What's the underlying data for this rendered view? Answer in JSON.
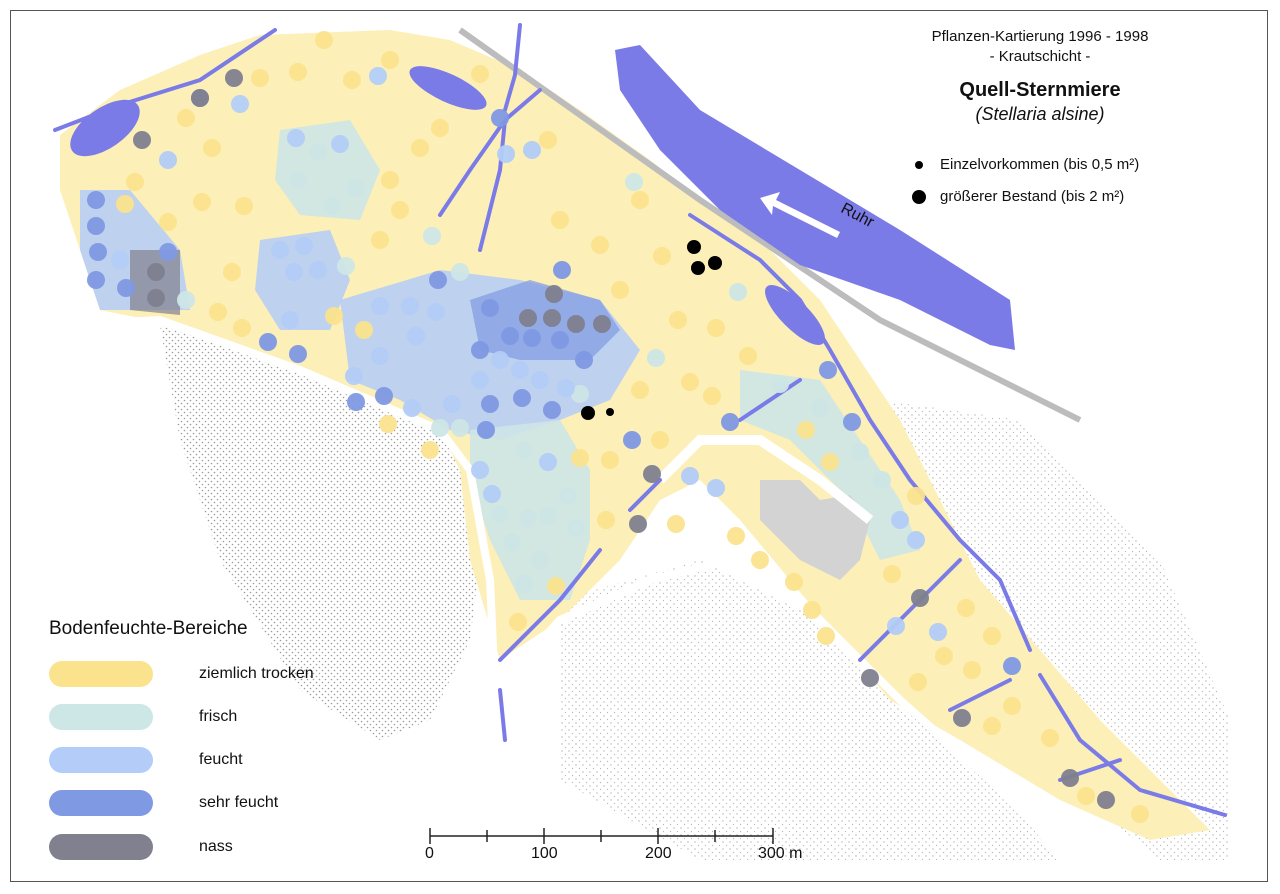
{
  "title": {
    "line1": "Pflanzen-Kartierung 1996 - 1998",
    "line2": "- Krautschicht -",
    "species": "Quell-Sternmiere",
    "scientific": "(Stellaria alsine)"
  },
  "occurrence_legend": [
    {
      "label": "Einzelvorkommen (bis 0,5 m²)",
      "size": "small"
    },
    {
      "label": "größerer Bestand (bis 2 m²)",
      "size": "large"
    }
  ],
  "river": {
    "name": "Ruhr"
  },
  "moisture_legend": {
    "title": "Bodenfeuchte-Bereiche",
    "classes": [
      {
        "label": "ziemlich trocken",
        "color": "#fbe38e"
      },
      {
        "label": "frisch",
        "color": "#cde6e6"
      },
      {
        "label": "feucht",
        "color": "#b3cdf8"
      },
      {
        "label": "sehr feucht",
        "color": "#7f99e3"
      },
      {
        "label": "nass",
        "color": "#80808f"
      }
    ]
  },
  "scale_bar": {
    "labels": [
      "0",
      "100",
      "200",
      "300 m"
    ]
  },
  "colors": {
    "water": "#7b7be8",
    "building": "#d3d3d3",
    "occurrence": "#000000"
  }
}
